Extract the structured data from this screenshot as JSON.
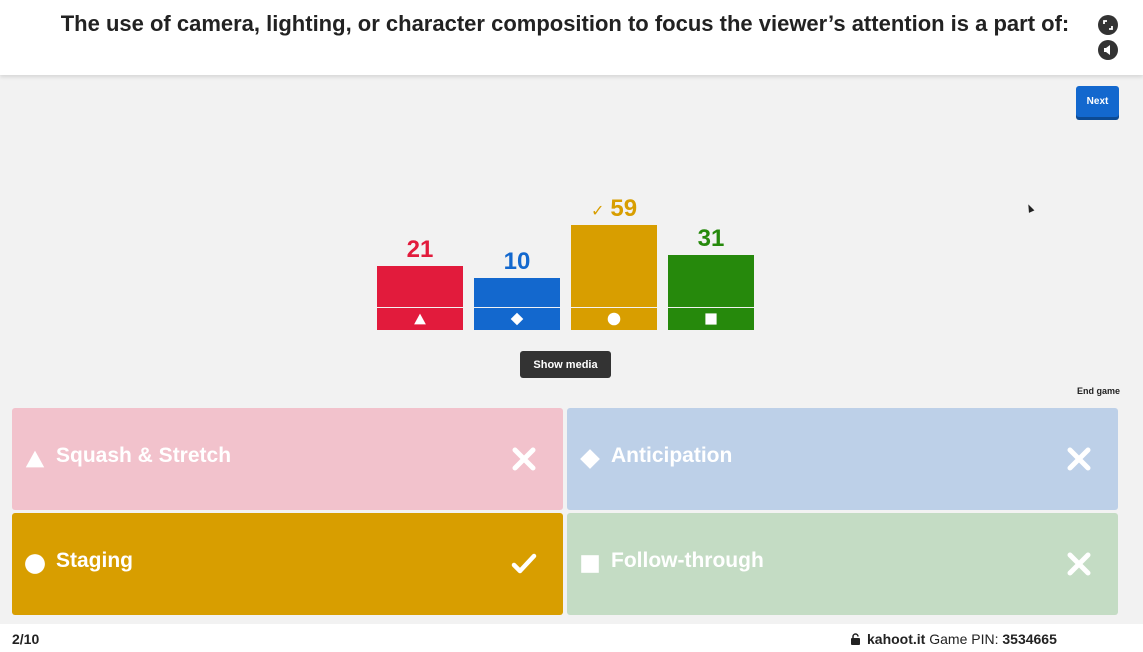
{
  "question": "The use of camera, lighting, or character composition to focus the viewer’s attention is a part of:",
  "header": {
    "fullscreen_icon": "fullscreen-icon",
    "sound_icon": "sound-icon"
  },
  "next_label": "Next",
  "show_media_label": "Show media",
  "end_game_label": "End game",
  "correct_mark": "✓",
  "chart_data": {
    "type": "bar",
    "categories": [
      "Squash & Stretch",
      "Anticipation",
      "Staging",
      "Follow-through"
    ],
    "values": [
      21,
      10,
      59,
      31
    ],
    "colors": [
      "#e21b3c",
      "#1368ce",
      "#d89e00",
      "#26890c"
    ],
    "shapes": [
      "triangle",
      "diamond",
      "circle",
      "square"
    ],
    "correct_index": 2
  },
  "answers": [
    {
      "label": "Squash & Stretch",
      "shape": "triangle",
      "result": "incorrect",
      "color": "#f2c2cc"
    },
    {
      "label": "Anticipation",
      "shape": "diamond",
      "result": "incorrect",
      "color": "#bdd0e8"
    },
    {
      "label": "Staging",
      "shape": "circle",
      "result": "correct",
      "color": "#d89e00"
    },
    {
      "label": "Follow-through",
      "shape": "square",
      "result": "incorrect",
      "color": "#c4dcc4"
    }
  ],
  "footer": {
    "progress": "2/10",
    "site": "kahoot.it",
    "pin_label": "Game PIN:",
    "pin": "3534665"
  }
}
